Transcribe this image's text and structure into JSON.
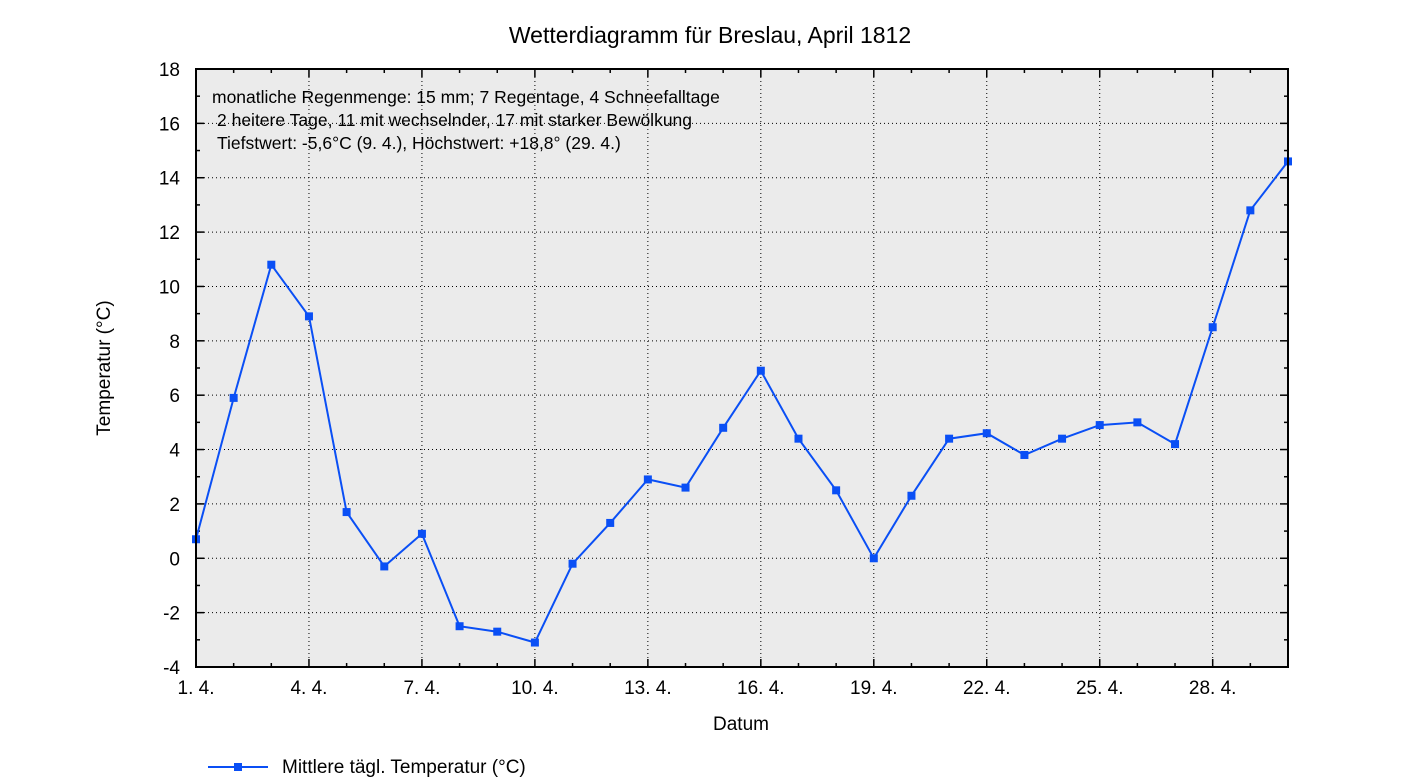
{
  "chart_data": {
    "type": "line",
    "title": "Wetterdiagramm für Breslau, April 1812",
    "xlabel": "Datum",
    "ylabel": "Temperatur (°C)",
    "xlim": [
      1,
      30
    ],
    "ylim": [
      -4,
      18
    ],
    "yticks": [
      -4,
      -2,
      0,
      2,
      4,
      6,
      8,
      10,
      12,
      14,
      16,
      18
    ],
    "yticklabels": [
      "-4",
      "-2",
      "0",
      "2",
      "4",
      "6",
      "8",
      "10",
      "12",
      "14",
      "16",
      "18"
    ],
    "xticks": [
      1,
      4,
      7,
      10,
      13,
      16,
      19,
      22,
      25,
      28
    ],
    "xticklabels": [
      "1. 4.",
      "4. 4.",
      "7. 4.",
      "10. 4.",
      "13. 4.",
      "16. 4.",
      "19. 4.",
      "22. 4.",
      "25. 4.",
      "28. 4."
    ],
    "grid": true,
    "background_color": "#ebebeb",
    "legend_position": "bottom-left",
    "annotations": [
      "monatliche Regenmenge: 15 mm; 7 Regentage, 4 Schneefalltage",
      "2 heitere Tage, 11 mit wechselnder, 17 mit starker Bewölkung",
      "Tiefstwert: -5,6°C (9. 4.), Höchstwert: +18,8° (29. 4.)"
    ],
    "series": [
      {
        "name": "Mittlere tägl. Temperatur (°C)",
        "color": "#0a4ff5",
        "marker": "square",
        "x": [
          1,
          2,
          3,
          4,
          5,
          6,
          7,
          8,
          9,
          10,
          11,
          12,
          13,
          14,
          15,
          16,
          17,
          18,
          19,
          20,
          21,
          22,
          23,
          24,
          25,
          26,
          27,
          28,
          29,
          30
        ],
        "y": [
          0.7,
          5.9,
          10.8,
          8.9,
          1.7,
          -0.3,
          0.9,
          -2.5,
          -2.7,
          -3.1,
          -0.2,
          1.3,
          2.9,
          2.6,
          4.8,
          6.9,
          4.4,
          2.5,
          0.0,
          2.3,
          4.4,
          4.6,
          3.8,
          4.4,
          4.9,
          5.0,
          4.2,
          8.5,
          12.8,
          14.6
        ]
      }
    ]
  }
}
